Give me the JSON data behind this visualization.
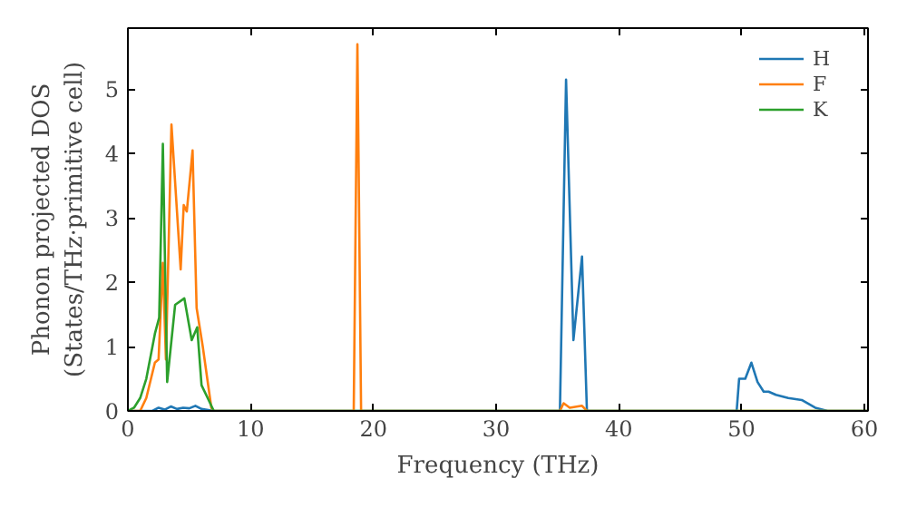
{
  "chart_data": {
    "type": "line",
    "xlabel": "Frequency (THz)",
    "ylabel": "Phonon projected DOS\n(States/THz·primitive cell)",
    "xlim": [
      0,
      60.3
    ],
    "ylim": [
      0,
      5.95
    ],
    "xticks": [
      0,
      10,
      20,
      30,
      40,
      50,
      60
    ],
    "yticks": [
      0,
      1,
      2,
      3,
      4,
      5
    ],
    "legend": "top right",
    "grid": false,
    "series": [
      {
        "name": "H",
        "color": "#1f77b4",
        "x": [
          0,
          2,
          2.5,
          3,
          3.5,
          4,
          4.5,
          5,
          5.5,
          6,
          7,
          35.2,
          35.7,
          36.3,
          37.0,
          37.4,
          49.6,
          49.8,
          50.3,
          50.8,
          51.3,
          51.8,
          52.2,
          52.8,
          53.8,
          54.9,
          56,
          57,
          60.3
        ],
        "values": [
          0,
          0,
          0.05,
          0.02,
          0.07,
          0.03,
          0.05,
          0.04,
          0.08,
          0.03,
          0,
          0,
          5.15,
          1.1,
          2.4,
          0,
          0,
          0.5,
          0.5,
          0.75,
          0.45,
          0.3,
          0.3,
          0.25,
          0.2,
          0.17,
          0.05,
          0,
          0
        ]
      },
      {
        "name": "F",
        "color": "#ff7f0e",
        "x": [
          0,
          1,
          1.5,
          2.2,
          2.5,
          2.85,
          3.1,
          3.55,
          4.3,
          4.55,
          4.8,
          5.27,
          5.6,
          6.1,
          6.8,
          7,
          18.4,
          18.7,
          19.0,
          35.2,
          35.5,
          36,
          37,
          37.4,
          60.3
        ],
        "values": [
          0,
          0,
          0.2,
          0.75,
          0.8,
          2.3,
          0.8,
          4.45,
          2.2,
          3.2,
          3.1,
          4.05,
          1.6,
          1.0,
          0.05,
          0,
          0,
          5.7,
          0,
          0,
          0.12,
          0.05,
          0.08,
          0,
          0
        ]
      },
      {
        "name": "K",
        "color": "#2ca02c",
        "x": [
          0,
          0.5,
          1,
          1.5,
          2.2,
          2.55,
          2.85,
          3.2,
          3.85,
          4.6,
          5.2,
          5.65,
          6.0,
          6.5,
          7,
          60.3
        ],
        "values": [
          0,
          0.05,
          0.2,
          0.5,
          1.2,
          1.45,
          4.15,
          0.45,
          1.65,
          1.75,
          1.1,
          1.3,
          0.4,
          0.2,
          0,
          0
        ]
      }
    ]
  }
}
